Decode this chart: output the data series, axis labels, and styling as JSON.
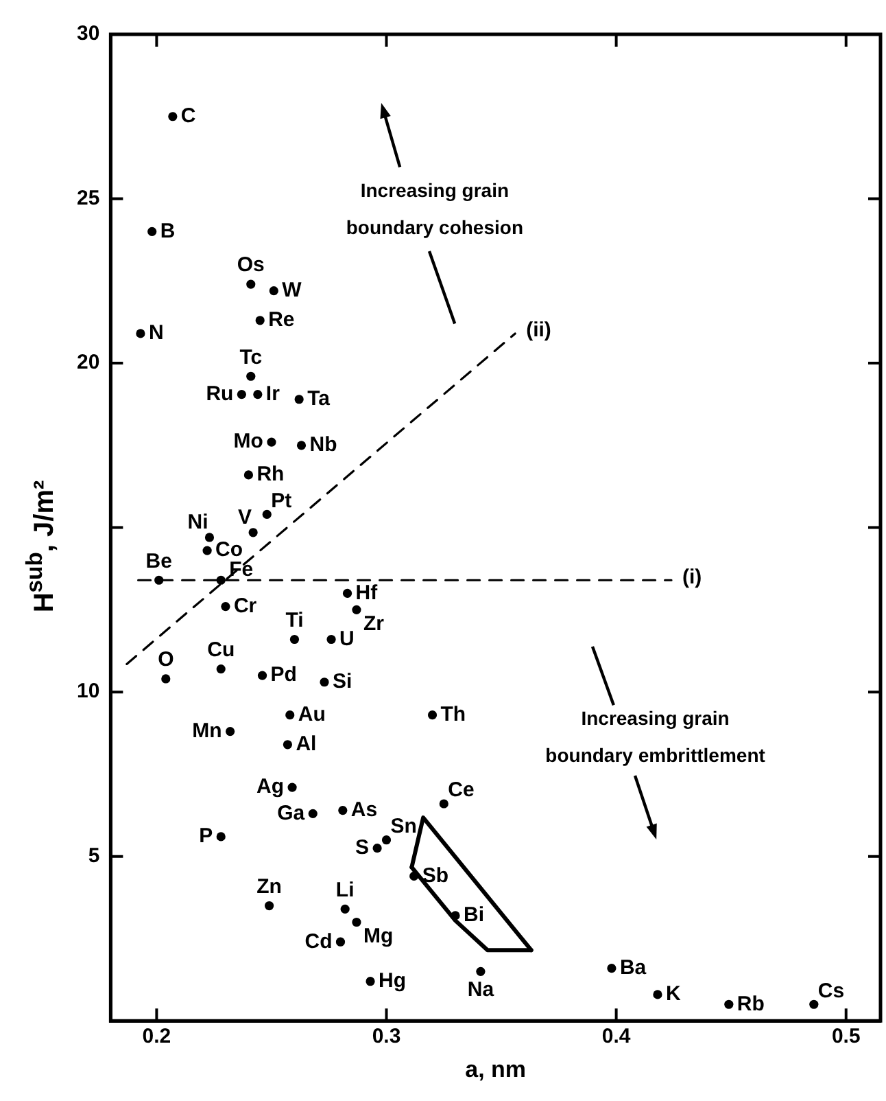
{
  "chart_data": {
    "type": "scatter",
    "xlabel": "a, nm",
    "ylabel": "H$^{sub}$, J/m²",
    "xlim": [
      0.18,
      0.515
    ],
    "ylim": [
      0,
      30
    ],
    "xticks": [
      0.2,
      0.3,
      0.4,
      0.5
    ],
    "yticks": [
      5,
      10,
      {
        "value": 15,
        "label": null
      },
      20,
      25,
      30
    ],
    "marker": "circle",
    "annotations": [
      "Increasing grain\nboundary cohesion",
      "Increasing grain\nboundary embrittlement"
    ],
    "series": [
      {
        "name": "C",
        "color": "#000000",
        "x": [
          0.207
        ],
        "values": [
          27.5
        ]
      },
      {
        "name": "B",
        "color": "#000000",
        "x": [
          0.198
        ],
        "values": [
          24.0
        ]
      },
      {
        "name": "Os",
        "color": "#000000",
        "x": [
          0.241
        ],
        "values": [
          22.4
        ]
      },
      {
        "name": "W",
        "color": "#000000",
        "x": [
          0.251
        ],
        "values": [
          22.2
        ]
      },
      {
        "name": "Re",
        "color": "#000000",
        "x": [
          0.245
        ],
        "values": [
          21.3
        ]
      },
      {
        "name": "N",
        "color": "#000000",
        "x": [
          0.193
        ],
        "values": [
          20.9
        ]
      },
      {
        "name": "Tc",
        "color": "#000000",
        "x": [
          0.241
        ],
        "values": [
          19.6
        ]
      },
      {
        "name": "Ru",
        "color": "#000000",
        "x": [
          0.237
        ],
        "values": [
          19.05
        ]
      },
      {
        "name": "Ir",
        "color": "#000000",
        "x": [
          0.244
        ],
        "values": [
          19.05
        ]
      },
      {
        "name": "Ta",
        "color": "#000000",
        "x": [
          0.262
        ],
        "values": [
          18.9
        ]
      },
      {
        "name": "Mo",
        "color": "#000000",
        "x": [
          0.25
        ],
        "values": [
          17.6
        ]
      },
      {
        "name": "Nb",
        "color": "#000000",
        "x": [
          0.263
        ],
        "values": [
          17.5
        ]
      },
      {
        "name": "Rh",
        "color": "#000000",
        "x": [
          0.24
        ],
        "values": [
          16.6
        ]
      },
      {
        "name": "Pt",
        "color": "#000000",
        "x": [
          0.248
        ],
        "values": [
          15.4
        ]
      },
      {
        "name": "V",
        "color": "#000000",
        "x": [
          0.242
        ],
        "values": [
          14.85
        ]
      },
      {
        "name": "Ni",
        "color": "#000000",
        "x": [
          0.223
        ],
        "values": [
          14.7
        ]
      },
      {
        "name": "Co",
        "color": "#000000",
        "x": [
          0.222
        ],
        "values": [
          14.3
        ]
      },
      {
        "name": "Be",
        "color": "#000000",
        "x": [
          0.201
        ],
        "values": [
          13.4
        ]
      },
      {
        "name": "Fe",
        "color": "#000000",
        "x": [
          0.228
        ],
        "values": [
          13.4
        ]
      },
      {
        "name": "Cr",
        "color": "#000000",
        "x": [
          0.23
        ],
        "values": [
          12.6
        ]
      },
      {
        "name": "Hf",
        "color": "#000000",
        "x": [
          0.283
        ],
        "values": [
          13.0
        ]
      },
      {
        "name": "Zr",
        "color": "#000000",
        "x": [
          0.287
        ],
        "values": [
          12.5
        ]
      },
      {
        "name": "Ti",
        "color": "#000000",
        "x": [
          0.26
        ],
        "values": [
          11.6
        ]
      },
      {
        "name": "U",
        "color": "#000000",
        "x": [
          0.276
        ],
        "values": [
          11.6
        ]
      },
      {
        "name": "O",
        "color": "#000000",
        "x": [
          0.204
        ],
        "values": [
          10.4
        ]
      },
      {
        "name": "Cu",
        "color": "#000000",
        "x": [
          0.228
        ],
        "values": [
          10.7
        ]
      },
      {
        "name": "Pd",
        "color": "#000000",
        "x": [
          0.246
        ],
        "values": [
          10.5
        ]
      },
      {
        "name": "Si",
        "color": "#000000",
        "x": [
          0.273
        ],
        "values": [
          10.3
        ]
      },
      {
        "name": "Au",
        "color": "#000000",
        "x": [
          0.258
        ],
        "values": [
          9.3
        ]
      },
      {
        "name": "Al",
        "color": "#000000",
        "x": [
          0.257
        ],
        "values": [
          8.4
        ]
      },
      {
        "name": "Mn",
        "color": "#000000",
        "x": [
          0.232
        ],
        "values": [
          8.8
        ]
      },
      {
        "name": "Ag",
        "color": "#000000",
        "x": [
          0.259
        ],
        "values": [
          7.1
        ]
      },
      {
        "name": "Ga",
        "color": "#000000",
        "x": [
          0.268
        ],
        "values": [
          6.3
        ]
      },
      {
        "name": "As",
        "color": "#000000",
        "x": [
          0.281
        ],
        "values": [
          6.4
        ]
      },
      {
        "name": "P",
        "color": "#000000",
        "x": [
          0.228
        ],
        "values": [
          5.6
        ]
      },
      {
        "name": "S",
        "color": "#000000",
        "x": [
          0.296
        ],
        "values": [
          5.25
        ]
      },
      {
        "name": "Sn",
        "color": "#000000",
        "x": [
          0.3
        ],
        "values": [
          5.5
        ]
      },
      {
        "name": "Sb",
        "color": "#000000",
        "x": [
          0.312
        ],
        "values": [
          4.4
        ]
      },
      {
        "name": "Zn",
        "color": "#000000",
        "x": [
          0.249
        ],
        "values": [
          3.5
        ]
      },
      {
        "name": "Li",
        "color": "#000000",
        "x": [
          0.282
        ],
        "values": [
          3.4
        ]
      },
      {
        "name": "Mg",
        "color": "#000000",
        "x": [
          0.287
        ],
        "values": [
          3.0
        ]
      },
      {
        "name": "Cd",
        "color": "#000000",
        "x": [
          0.28
        ],
        "values": [
          2.4
        ]
      },
      {
        "name": "Hg",
        "color": "#000000",
        "x": [
          0.293
        ],
        "values": [
          1.2
        ]
      },
      {
        "name": "Th",
        "color": "#000000",
        "x": [
          0.32
        ],
        "values": [
          9.3
        ]
      },
      {
        "name": "Ce",
        "color": "#000000",
        "x": [
          0.325
        ],
        "values": [
          6.6
        ]
      },
      {
        "name": "Bi",
        "color": "#000000",
        "x": [
          0.33
        ],
        "values": [
          3.2
        ]
      },
      {
        "name": "Na",
        "color": "#000000",
        "x": [
          0.341
        ],
        "values": [
          1.5
        ]
      },
      {
        "name": "Ba",
        "color": "#000000",
        "x": [
          0.398
        ],
        "values": [
          1.6
        ]
      },
      {
        "name": "K",
        "color": "#000000",
        "x": [
          0.418
        ],
        "values": [
          0.8
        ]
      },
      {
        "name": "Rb",
        "color": "#000000",
        "x": [
          0.449
        ],
        "values": [
          0.5
        ]
      },
      {
        "name": "Cs",
        "color": "#000000",
        "x": [
          0.486
        ],
        "values": [
          0.5
        ]
      },
      {
        "name": "(i)",
        "type": "line",
        "marker": "none",
        "line_style": "dashed",
        "color": "#000000",
        "x": [
          0.192,
          0.424
        ],
        "values": [
          13.4,
          13.4
        ]
      },
      {
        "name": "(ii)",
        "type": "line",
        "marker": "none",
        "line_style": "dashed",
        "color": "#000000",
        "x": [
          0.187,
          0.356
        ],
        "values": [
          10.85,
          20.9
        ]
      },
      {
        "type": "line",
        "marker": "none",
        "line_style": "solid",
        "color": "#000000",
        "x": [
          0.311,
          0.316,
          0.363
        ],
        "values": [
          4.67,
          6.18,
          2.15
        ]
      },
      {
        "type": "line",
        "marker": "none",
        "line_style": "solid",
        "color": "#000000",
        "x": [
          0.311,
          0.33,
          0.344,
          0.363
        ],
        "values": [
          4.67,
          3.05,
          2.15,
          2.15
        ]
      }
    ]
  }
}
